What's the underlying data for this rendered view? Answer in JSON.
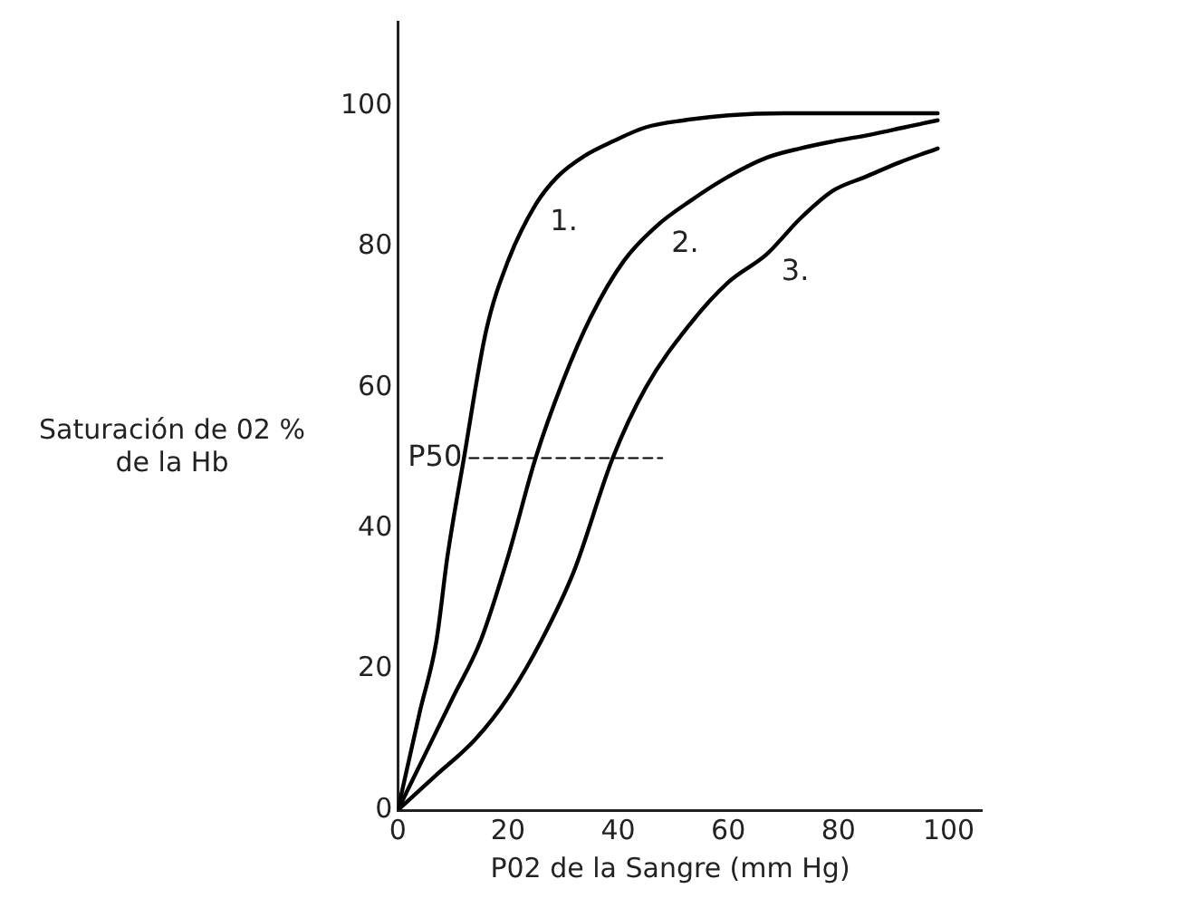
{
  "chart_data": {
    "type": "line",
    "xlabel": "P02 de la Sangre (mm Hg)",
    "ylabel": "Saturación de 02 % de la Hb",
    "xlim": [
      0,
      106
    ],
    "ylim": [
      0,
      112
    ],
    "xticks": [
      0,
      20,
      40,
      60,
      80,
      100
    ],
    "yticks": [
      0,
      20,
      40,
      60,
      80,
      100
    ],
    "grid": false,
    "legend": false,
    "marker": "none",
    "line_style": "solid",
    "series": [
      {
        "name": "1.",
        "color": "#000000",
        "x": [
          0,
          4,
          7,
          9,
          12,
          16,
          20,
          25,
          29,
          34,
          39,
          45,
          52,
          60,
          70,
          80,
          90,
          98
        ],
        "values": [
          0,
          14,
          24,
          36,
          50,
          68,
          78,
          86,
          90,
          93,
          95,
          97,
          98,
          98.7,
          99,
          99,
          99,
          99
        ]
      },
      {
        "name": "2.",
        "color": "#000000",
        "x": [
          0,
          5,
          10,
          15,
          20,
          25,
          30,
          35,
          41,
          47,
          53,
          60,
          67,
          73,
          79,
          86,
          92,
          98
        ],
        "values": [
          0,
          8,
          16,
          24,
          36,
          50,
          61,
          70,
          78,
          83,
          86.5,
          90,
          92.7,
          94,
          95,
          96,
          97,
          98
        ]
      },
      {
        "name": "3.",
        "color": "#000000",
        "x": [
          0,
          7,
          14,
          20,
          26,
          32,
          39,
          45,
          53,
          60,
          67,
          73,
          79,
          85,
          91,
          98
        ],
        "values": [
          0,
          5,
          10,
          16,
          24,
          34,
          50,
          60,
          69,
          75,
          79,
          84,
          88,
          90,
          92,
          94
        ]
      },
      {
        "name": "P50",
        "type": "line",
        "line_style": "dashed",
        "color": "#000000",
        "x": [
          13,
          48
        ],
        "values": [
          50,
          50
        ]
      }
    ]
  }
}
